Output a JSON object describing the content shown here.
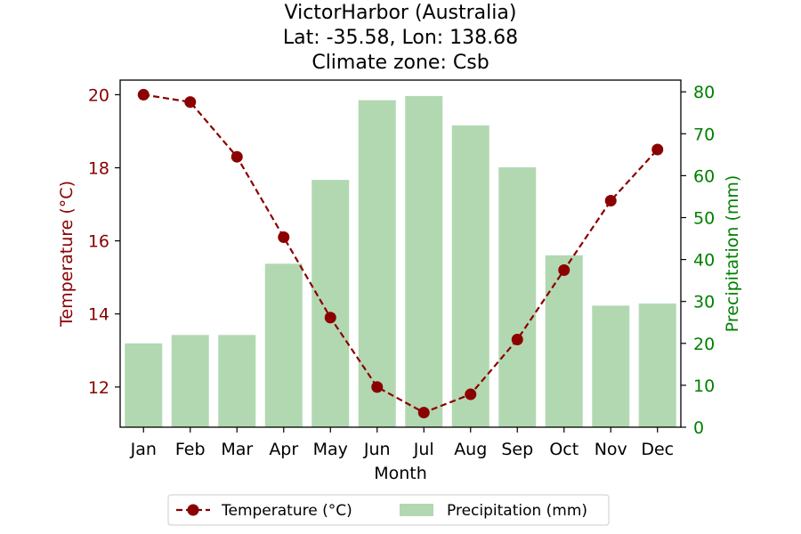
{
  "chart_data": {
    "type": "bar+line",
    "title_lines": [
      "VictorHarbor (Australia)",
      "Lat: -35.58, Lon: 138.68",
      "Climate zone: Csb"
    ],
    "xlabel": "Month",
    "categories": [
      "Jan",
      "Feb",
      "Mar",
      "Apr",
      "May",
      "Jun",
      "Jul",
      "Aug",
      "Sep",
      "Oct",
      "Nov",
      "Dec"
    ],
    "series": [
      {
        "name": "Temperature (°C)",
        "kind": "line",
        "axis": "left",
        "color": "#8b0000",
        "line_style": "dashed",
        "marker": "circle",
        "values": [
          20.0,
          19.8,
          18.3,
          16.1,
          13.9,
          12.0,
          11.3,
          11.8,
          13.3,
          15.2,
          17.1,
          18.5
        ]
      },
      {
        "name": "Precipitation (mm)",
        "kind": "bar",
        "axis": "right",
        "color": "#b2d8b2",
        "values": [
          20,
          22,
          22,
          39,
          59,
          78,
          79,
          72,
          62,
          41,
          29,
          29.5
        ]
      }
    ],
    "left_axis": {
      "label": "Temperature (°C)",
      "color": "#8b0000",
      "ylim": [
        10.9,
        20.4
      ],
      "ticks": [
        12,
        14,
        16,
        18,
        20
      ]
    },
    "right_axis": {
      "label": "Precipitation (mm)",
      "color": "#008000",
      "ylim": [
        0,
        82.8
      ],
      "ticks": [
        0,
        10,
        20,
        30,
        40,
        50,
        60,
        70,
        80
      ]
    },
    "legend": {
      "placement": "bottom-center",
      "entries": [
        "Temperature (°C)",
        "Precipitation (mm)"
      ]
    },
    "grid": false
  }
}
